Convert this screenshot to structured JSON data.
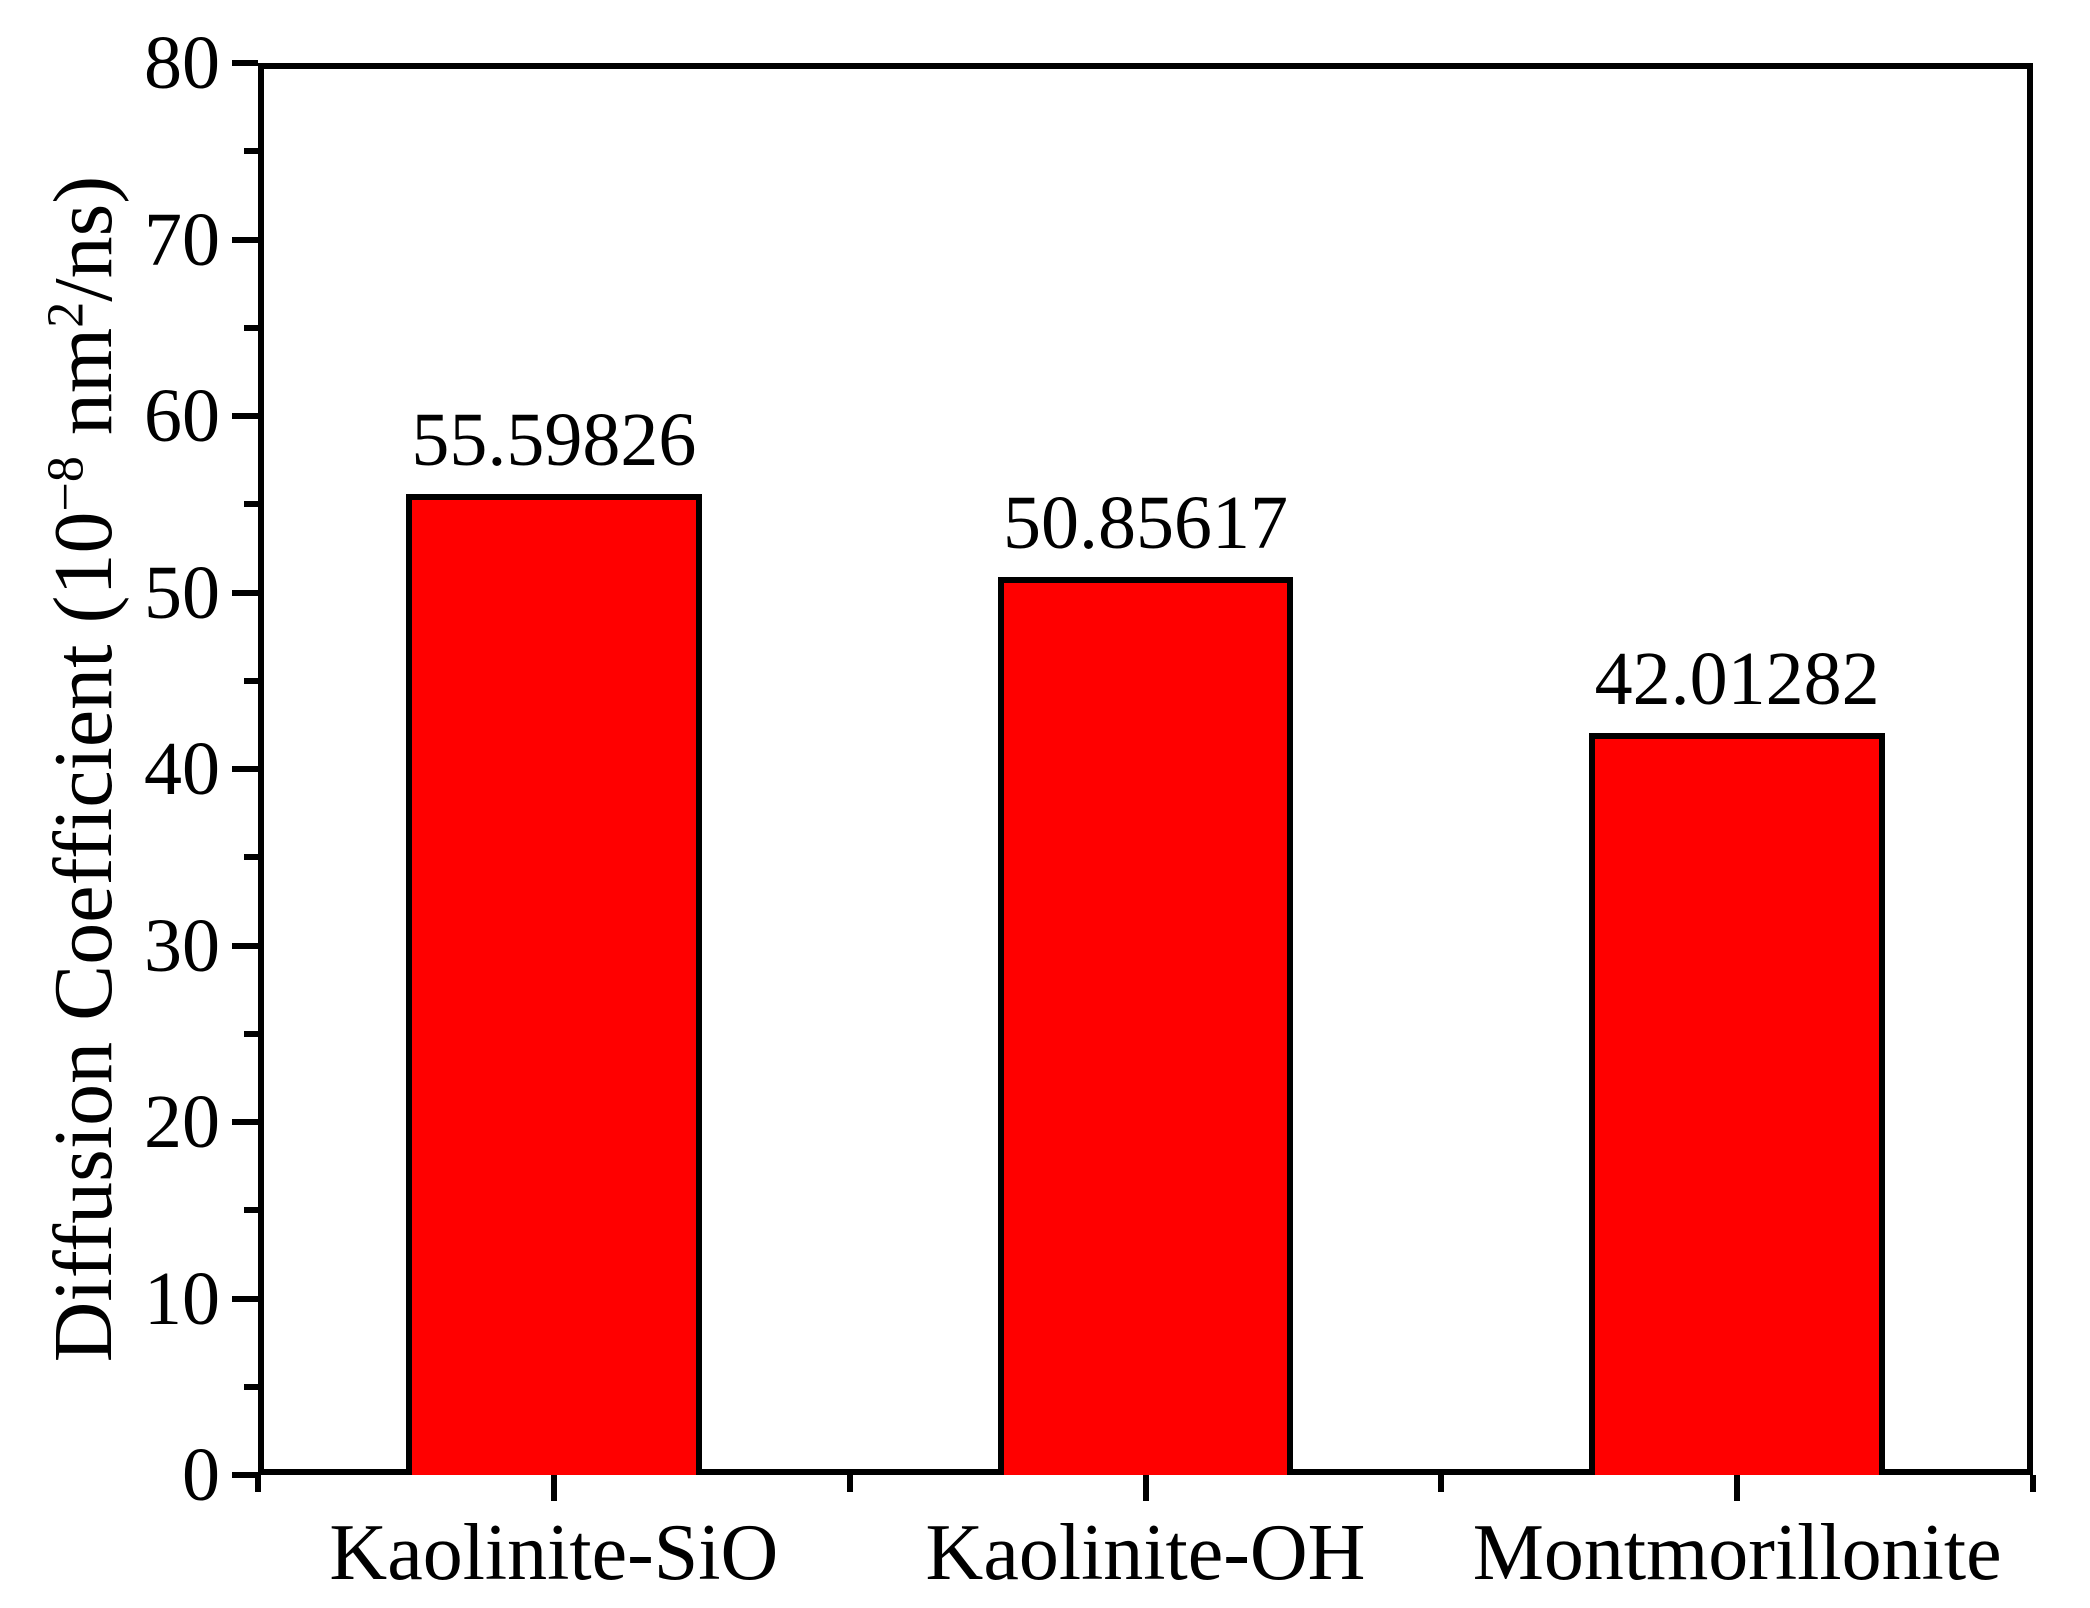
{
  "chart_data": {
    "type": "bar",
    "title": "",
    "categories": [
      "Kaolinite-SiO",
      "Kaolinite-OH",
      "Montmorillonite"
    ],
    "values": [
      55.59826,
      50.85617,
      42.01282
    ],
    "value_labels": [
      "55.59826",
      "50.85617",
      "42.01282"
    ],
    "ylabel": "Diffusion Coefficient (10⁻⁸ nm²/ns)",
    "xlabel": "",
    "ylim": [
      0,
      80
    ],
    "y_major_step": 10,
    "y_minor_step": 5,
    "y_tick_labels": [
      "0",
      "10",
      "20",
      "30",
      "40",
      "50",
      "60",
      "70",
      "80"
    ],
    "bar_width_fraction": 0.5,
    "grid": false,
    "legend": null,
    "bar_color": "#FF0000",
    "bar_border_color": "#000000",
    "axis_color": "#000000",
    "background_color": "#FFFFFF"
  },
  "ylabel_parts": {
    "p1": "Diffusion Coefficient (10",
    "sup1": "−8",
    "p2": " nm",
    "sup2": "2",
    "p3": "/ns)"
  }
}
